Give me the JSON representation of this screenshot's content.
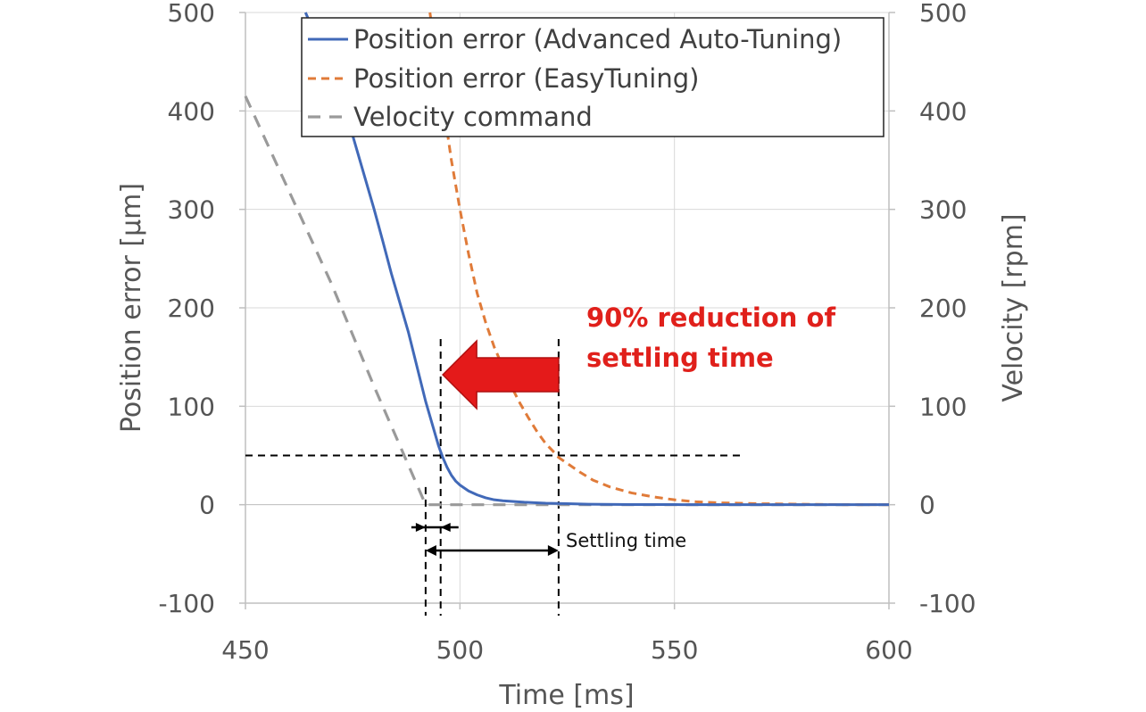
{
  "chart_data": {
    "type": "line",
    "xlabel": "Time [ms]",
    "ylabel_left": "Position error [µm]",
    "ylabel_right": "Velocity [rpm]",
    "xlim": [
      450,
      600
    ],
    "ylim_left": [
      -100,
      500
    ],
    "ylim_right": [
      -100,
      500
    ],
    "x_ticks": [
      450,
      500,
      550,
      600
    ],
    "x_tick_labels": [
      "450",
      "500",
      "550",
      "600"
    ],
    "y_ticks": [
      -100,
      0,
      100,
      200,
      300,
      400,
      500
    ],
    "y_tick_labels": [
      "-100",
      "0",
      "100",
      "200",
      "300",
      "400",
      "500"
    ],
    "grid": true,
    "legend_position": "top-right",
    "series": [
      {
        "name": "Position error (Advanced Auto-Tuning)",
        "color": "#4169b8",
        "style": "solid",
        "axis": "left",
        "x": [
          464,
          466,
          468,
          470,
          472,
          474,
          476,
          478,
          480,
          482,
          484,
          486,
          488,
          490,
          492,
          494,
          495,
          496,
          497,
          498,
          499,
          500,
          502,
          504,
          506,
          508,
          510,
          515,
          520,
          525,
          530,
          540,
          550,
          560,
          570,
          580,
          590,
          600
        ],
        "values": [
          500,
          480,
          460,
          440,
          415,
          390,
          360,
          330,
          300,
          268,
          235,
          205,
          175,
          140,
          105,
          75,
          60,
          48,
          38,
          30,
          24,
          20,
          14,
          10,
          7,
          5,
          4,
          2.5,
          1.5,
          1,
          0.5,
          0.2,
          0.1,
          0,
          0,
          0,
          0,
          0
        ]
      },
      {
        "name": "Position error (EasyTuning)",
        "color": "#e07b39",
        "style": "dashed",
        "axis": "left",
        "x": [
          493,
          495,
          496,
          498,
          500,
          502,
          504,
          506,
          508,
          510,
          512,
          514,
          516,
          518,
          520,
          522,
          523,
          525,
          528,
          531,
          535,
          540,
          545,
          550,
          555,
          560,
          570,
          580,
          590,
          600
        ],
        "values": [
          500,
          440,
          410,
          350,
          300,
          255,
          215,
          185,
          160,
          140,
          120,
          103,
          88,
          74,
          62,
          53,
          48,
          42,
          33,
          25,
          18,
          12,
          8,
          5,
          3,
          2,
          1,
          0.5,
          0,
          0
        ]
      },
      {
        "name": "Velocity command",
        "color": "#9a9a9a",
        "style": "dashed",
        "axis": "right",
        "x": [
          450,
          460,
          470,
          480,
          490,
          492,
          500,
          520,
          550,
          580,
          600
        ],
        "values": [
          415,
          320,
          225,
          120,
          20,
          0,
          0,
          0,
          0,
          0,
          0
        ]
      }
    ],
    "annotation": {
      "reduction_line1": "90% reduction of",
      "reduction_line2": "settling time",
      "settling_label": "Settling time",
      "threshold_level": 50,
      "vline_times": [
        492,
        495.5,
        523
      ],
      "easytuning_settling_span": [
        492,
        523
      ],
      "advanced_settling_span": [
        492,
        495.5
      ],
      "threshold_x_end": 566,
      "arrow_from_time": 523,
      "arrow_to_time": 496,
      "arrow_color": "#e41a1a"
    }
  }
}
